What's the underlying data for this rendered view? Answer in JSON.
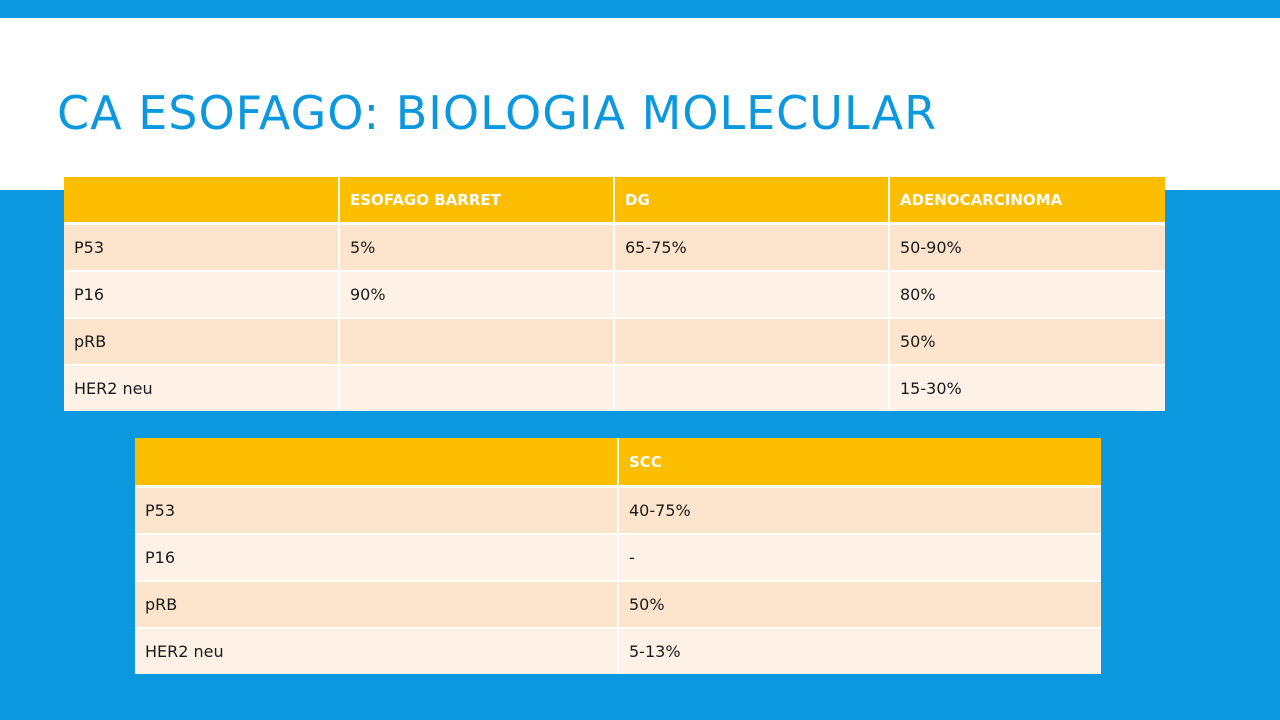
{
  "slide": {
    "title": "CA ESOFAGO: BIOLOGIA MOLECULAR"
  },
  "colors": {
    "accent_blue": "#0c98df",
    "header_gold": "#fdbe00",
    "row_band": "#fde4cc",
    "row_plain": "#fef2e6"
  },
  "table_top": {
    "headers": [
      "",
      "ESOFAGO BARRET",
      "DG",
      "ADENOCARCINOMA"
    ],
    "rows": [
      [
        "P53",
        "5%",
        "65-75%",
        "50-90%"
      ],
      [
        "P16",
        "90%",
        "",
        "80%"
      ],
      [
        "pRB",
        "",
        "",
        "50%"
      ],
      [
        "HER2 neu",
        "",
        "",
        "15-30%"
      ]
    ]
  },
  "table_bottom": {
    "headers": [
      "",
      "SCC"
    ],
    "rows": [
      [
        "P53",
        "40-75%"
      ],
      [
        "P16",
        "-"
      ],
      [
        "pRB",
        "50%"
      ],
      [
        "HER2 neu",
        "5-13%"
      ]
    ]
  }
}
